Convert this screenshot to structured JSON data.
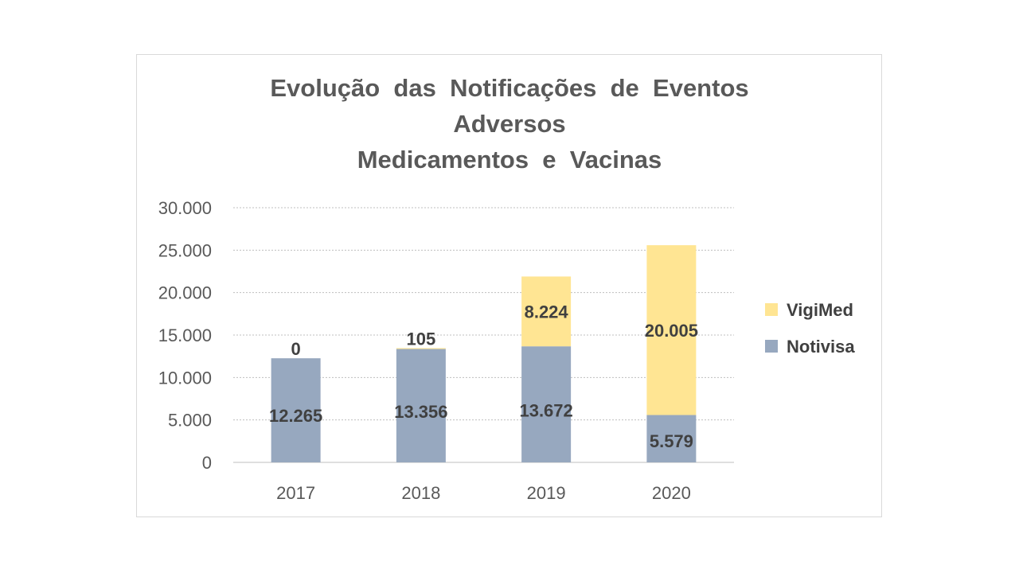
{
  "chart_data": {
    "type": "bar",
    "stacked": true,
    "title_lines": [
      "Evolução  das  Notificações  de  Eventos",
      "Adversos",
      "Medicamentos  e  Vacinas"
    ],
    "categories": [
      "2017",
      "2018",
      "2019",
      "2020"
    ],
    "series": [
      {
        "name": "Notivisa",
        "values": [
          12265,
          13356,
          13672,
          5579
        ],
        "labels": [
          "12.265",
          "13.356",
          "13.672",
          "5.579"
        ],
        "color": "#97a8bf"
      },
      {
        "name": "VigiMed",
        "values": [
          0,
          105,
          8224,
          20005
        ],
        "labels": [
          "0",
          "105",
          "8.224",
          "20.005"
        ],
        "color": "#ffe593"
      }
    ],
    "ylim": [
      0,
      30000
    ],
    "yticks": [
      0,
      5000,
      10000,
      15000,
      20000,
      25000,
      30000
    ],
    "ytick_labels": [
      "0",
      "5.000",
      "10.000",
      "15.000",
      "20.000",
      "25.000",
      "30.000"
    ],
    "grid": true,
    "gridline_color": "#bfbfbf",
    "legend_position": "right",
    "legend_order": [
      "VigiMed",
      "Notivisa"
    ]
  }
}
